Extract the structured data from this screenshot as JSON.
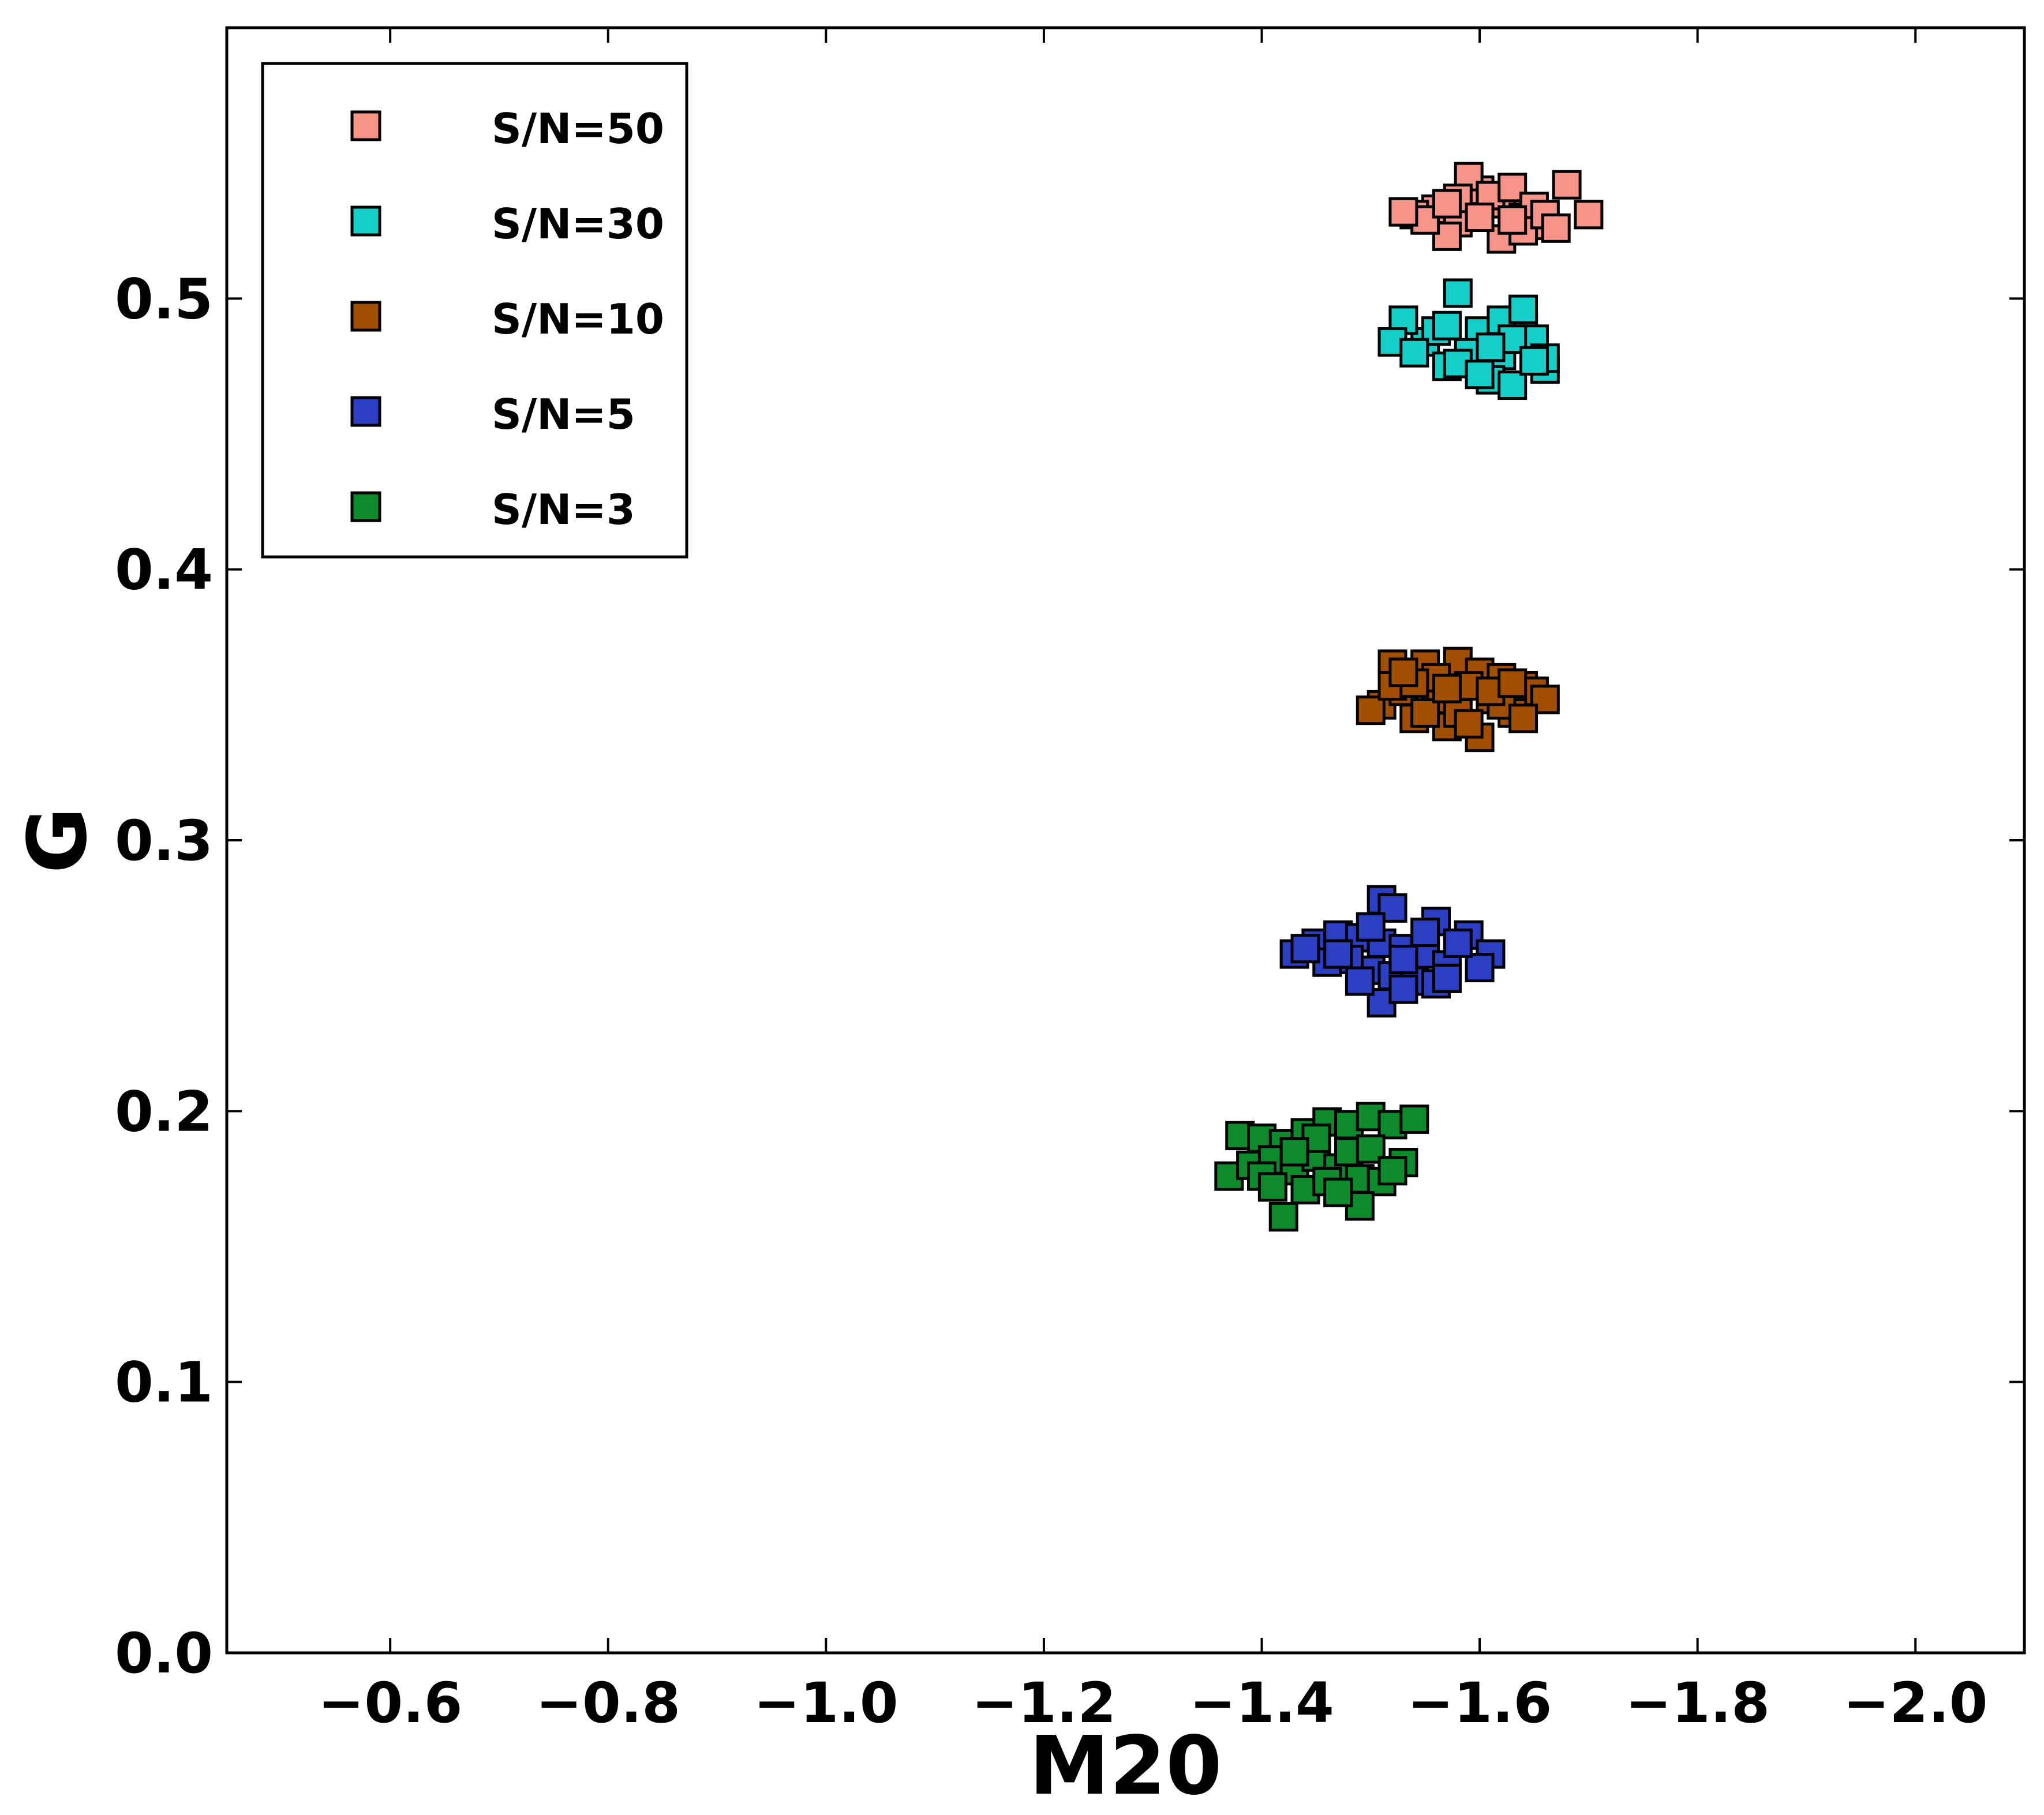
{
  "chart_data": {
    "type": "scatter",
    "title": "",
    "xlabel": "M20",
    "ylabel": "G",
    "xlim": [
      -0.45,
      -2.1
    ],
    "ylim": [
      0.0,
      0.6
    ],
    "x_inverted": true,
    "grid": false,
    "legend_position": "top-left",
    "marker": "square",
    "xticks": [
      -0.6,
      -0.8,
      -1.0,
      -1.2,
      -1.4,
      -1.6,
      -1.8,
      -2.0
    ],
    "xtick_labels": [
      "−0.6",
      "−0.8",
      "−1.0",
      "−1.2",
      "−1.4",
      "−1.6",
      "−1.8",
      "−2.0"
    ],
    "yticks": [
      0.0,
      0.1,
      0.2,
      0.3,
      0.4,
      0.5
    ],
    "ytick_labels": [
      "0.0",
      "0.1",
      "0.2",
      "0.3",
      "0.4",
      "0.5"
    ],
    "series": [
      {
        "name": "S/N=50",
        "color": "#f6948a",
        "points": [
          [
            -1.56,
            0.533
          ],
          [
            -1.58,
            0.528
          ],
          [
            -1.6,
            0.54
          ],
          [
            -1.62,
            0.535
          ],
          [
            -1.64,
            0.53
          ],
          [
            -1.66,
            0.527
          ],
          [
            -1.54,
            0.531
          ],
          [
            -1.57,
            0.523
          ],
          [
            -1.59,
            0.545
          ],
          [
            -1.61,
            0.538
          ],
          [
            -1.63,
            0.541
          ],
          [
            -1.65,
            0.534
          ],
          [
            -1.68,
            0.542
          ],
          [
            -1.7,
            0.531
          ],
          [
            -1.55,
            0.529
          ],
          [
            -1.62,
            0.522
          ],
          [
            -1.64,
            0.525
          ],
          [
            -1.66,
            0.531
          ],
          [
            -1.58,
            0.537
          ],
          [
            -1.6,
            0.53
          ],
          [
            -1.53,
            0.532
          ],
          [
            -1.67,
            0.526
          ],
          [
            -1.57,
            0.535
          ],
          [
            -1.63,
            0.529
          ]
        ]
      },
      {
        "name": "S/N=30",
        "color": "#16cec8",
        "points": [
          [
            -1.58,
            0.502
          ],
          [
            -1.6,
            0.488
          ],
          [
            -1.62,
            0.479
          ],
          [
            -1.64,
            0.49
          ],
          [
            -1.55,
            0.484
          ],
          [
            -1.57,
            0.475
          ],
          [
            -1.53,
            0.492
          ],
          [
            -1.61,
            0.47
          ],
          [
            -1.63,
            0.468
          ],
          [
            -1.66,
            0.474
          ],
          [
            -1.65,
            0.485
          ],
          [
            -1.59,
            0.48
          ],
          [
            -1.52,
            0.484
          ],
          [
            -1.56,
            0.488
          ],
          [
            -1.62,
            0.492
          ],
          [
            -1.64,
            0.496
          ],
          [
            -1.66,
            0.478
          ],
          [
            -1.58,
            0.476
          ],
          [
            -1.6,
            0.472
          ],
          [
            -1.54,
            0.48
          ],
          [
            -1.57,
            0.49
          ],
          [
            -1.63,
            0.485
          ],
          [
            -1.61,
            0.482
          ],
          [
            -1.65,
            0.477
          ]
        ]
      },
      {
        "name": "S/N=10",
        "color": "#a24e00",
        "points": [
          [
            -1.52,
            0.365
          ],
          [
            -1.55,
            0.365
          ],
          [
            -1.58,
            0.366
          ],
          [
            -1.6,
            0.362
          ],
          [
            -1.62,
            0.36
          ],
          [
            -1.64,
            0.357
          ],
          [
            -1.65,
            0.355
          ],
          [
            -1.51,
            0.35
          ],
          [
            -1.53,
            0.355
          ],
          [
            -1.56,
            0.352
          ],
          [
            -1.59,
            0.357
          ],
          [
            -1.61,
            0.352
          ],
          [
            -1.63,
            0.347
          ],
          [
            -1.5,
            0.348
          ],
          [
            -1.54,
            0.345
          ],
          [
            -1.57,
            0.342
          ],
          [
            -1.6,
            0.338
          ],
          [
            -1.58,
            0.347
          ],
          [
            -1.62,
            0.35
          ],
          [
            -1.56,
            0.36
          ],
          [
            -1.52,
            0.357
          ],
          [
            -1.66,
            0.352
          ],
          [
            -1.54,
            0.358
          ],
          [
            -1.59,
            0.343
          ],
          [
            -1.61,
            0.355
          ],
          [
            -1.55,
            0.347
          ],
          [
            -1.63,
            0.358
          ],
          [
            -1.57,
            0.356
          ],
          [
            -1.53,
            0.362
          ],
          [
            -1.64,
            0.345
          ]
        ]
      },
      {
        "name": "S/N=5",
        "color": "#2c3fc2",
        "points": [
          [
            -1.51,
            0.278
          ],
          [
            -1.52,
            0.275
          ],
          [
            -1.56,
            0.27
          ],
          [
            -1.59,
            0.265
          ],
          [
            -1.61,
            0.258
          ],
          [
            -1.6,
            0.253
          ],
          [
            -1.43,
            0.258
          ],
          [
            -1.45,
            0.262
          ],
          [
            -1.47,
            0.265
          ],
          [
            -1.49,
            0.264
          ],
          [
            -1.51,
            0.262
          ],
          [
            -1.53,
            0.26
          ],
          [
            -1.55,
            0.258
          ],
          [
            -1.57,
            0.254
          ],
          [
            -1.5,
            0.252
          ],
          [
            -1.48,
            0.256
          ],
          [
            -1.46,
            0.255
          ],
          [
            -1.52,
            0.25
          ],
          [
            -1.54,
            0.248
          ],
          [
            -1.56,
            0.247
          ],
          [
            -1.51,
            0.24
          ],
          [
            -1.53,
            0.245
          ],
          [
            -1.49,
            0.248
          ],
          [
            -1.58,
            0.262
          ],
          [
            -1.55,
            0.266
          ],
          [
            -1.47,
            0.258
          ],
          [
            -1.44,
            0.26
          ],
          [
            -1.5,
            0.268
          ],
          [
            -1.53,
            0.256
          ],
          [
            -1.57,
            0.249
          ]
        ]
      },
      {
        "name": "S/N=3",
        "color": "#0e8a2d",
        "points": [
          [
            -1.38,
            0.191
          ],
          [
            -1.4,
            0.19
          ],
          [
            -1.42,
            0.188
          ],
          [
            -1.44,
            0.192
          ],
          [
            -1.46,
            0.196
          ],
          [
            -1.48,
            0.195
          ],
          [
            -1.5,
            0.198
          ],
          [
            -1.52,
            0.195
          ],
          [
            -1.54,
            0.197
          ],
          [
            -1.37,
            0.176
          ],
          [
            -1.39,
            0.18
          ],
          [
            -1.41,
            0.182
          ],
          [
            -1.43,
            0.178
          ],
          [
            -1.45,
            0.183
          ],
          [
            -1.47,
            0.179
          ],
          [
            -1.49,
            0.175
          ],
          [
            -1.51,
            0.174
          ],
          [
            -1.53,
            0.181
          ],
          [
            -1.42,
            0.161
          ],
          [
            -1.49,
            0.165
          ],
          [
            -1.44,
            0.171
          ],
          [
            -1.46,
            0.174
          ],
          [
            -1.4,
            0.176
          ],
          [
            -1.48,
            0.185
          ],
          [
            -1.5,
            0.186
          ],
          [
            -1.45,
            0.19
          ],
          [
            -1.41,
            0.172
          ],
          [
            -1.47,
            0.17
          ],
          [
            -1.52,
            0.178
          ],
          [
            -1.43,
            0.185
          ]
        ]
      }
    ]
  }
}
